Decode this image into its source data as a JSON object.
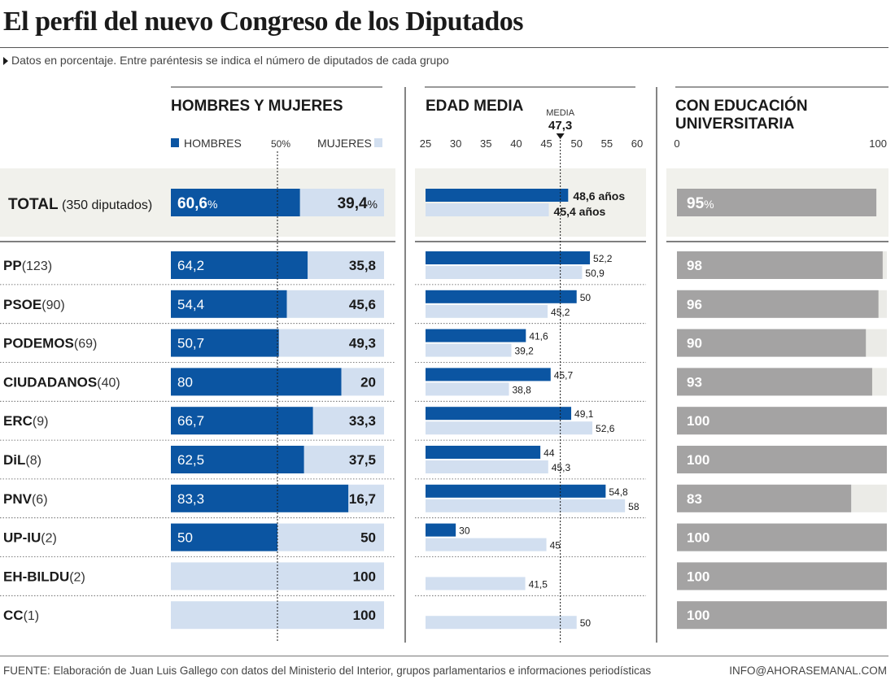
{
  "title": "El perfil del nuevo Congreso de los Diputados",
  "subtitle": "Datos en porcentaje. Entre paréntesis se indica el número de diputados de cada grupo",
  "footer": {
    "source": "FUENTE: Elaboración de Juan Luis Gallego con datos del Ministerio del Interior, grupos parlamentarios e informaciones periodísticas",
    "contact": "INFO@AHORASEMANAL.COM"
  },
  "colors": {
    "men": "#0b55a2",
    "women": "#d2dff0",
    "edu": "#a4a3a3",
    "edu_bg": "#ebebe7",
    "total_bg": "#f1f1ec"
  },
  "chart_data": [
    {
      "type": "bar",
      "title": "HOMBRES Y MUJERES",
      "legend": [
        "HOMBRES",
        "MUJERES"
      ],
      "reference_label": "50%",
      "total": {
        "label": "TOTAL",
        "count_label": "(350 diputados)",
        "men": "60,6",
        "women": "39,4",
        "unit": "%"
      },
      "categories": [
        "PP",
        "PSOE",
        "PODEMOS",
        "CIUDADANOS",
        "ERC",
        "DiL",
        "PNV",
        "UP-IU",
        "EH-BILDU",
        "CC"
      ],
      "counts": [
        "(123)",
        "(90)",
        "(69)",
        "(40)",
        "(9)",
        "(8)",
        "(6)",
        "(2)",
        "(2)",
        "(1)"
      ],
      "series": [
        {
          "name": "HOMBRES",
          "values": [
            64.2,
            54.4,
            50.7,
            80,
            66.7,
            62.5,
            83.3,
            50,
            0,
            0
          ],
          "labels": [
            "64,2",
            "54,4",
            "50,7",
            "80",
            "66,7",
            "62,5",
            "83,3",
            "50",
            "",
            ""
          ]
        },
        {
          "name": "MUJERES",
          "values": [
            35.8,
            45.6,
            49.3,
            20,
            33.3,
            37.5,
            16.7,
            50,
            100,
            100
          ],
          "labels": [
            "35,8",
            "45,6",
            "49,3",
            "20",
            "33,3",
            "37,5",
            "16,7",
            "50",
            "100",
            "100"
          ]
        }
      ]
    },
    {
      "type": "bar",
      "title": "EDAD MEDIA",
      "xlim": [
        25,
        60
      ],
      "ticks": [
        "25",
        "30",
        "35",
        "40",
        "45",
        "50",
        "55",
        "60"
      ],
      "reference": {
        "label": "MEDIA",
        "value_label": "47,3",
        "value": 47.3
      },
      "total": {
        "men": 48.6,
        "women": 45.4,
        "men_label": "48,6 años",
        "women_label": "45,4 años"
      },
      "categories": [
        "PP",
        "PSOE",
        "PODEMOS",
        "CIUDADANOS",
        "ERC",
        "DiL",
        "PNV",
        "UP-IU",
        "EH-BILDU",
        "CC"
      ],
      "series": [
        {
          "name": "HOMBRES",
          "values": [
            52.2,
            50,
            41.6,
            45.7,
            49.1,
            44,
            54.8,
            30,
            null,
            null
          ],
          "labels": [
            "52,2",
            "50",
            "41,6",
            "45,7",
            "49,1",
            "44",
            "54,8",
            "30",
            "",
            ""
          ]
        },
        {
          "name": "MUJERES",
          "values": [
            50.9,
            45.2,
            39.2,
            38.8,
            52.6,
            45.3,
            58,
            45,
            41.5,
            50
          ],
          "labels": [
            "50,9",
            "45,2",
            "39,2",
            "38,8",
            "52,6",
            "45,3",
            "58",
            "45",
            "41,5",
            "50"
          ]
        }
      ]
    },
    {
      "type": "bar",
      "title": "CON EDUCACIÓN UNIVERSITARIA",
      "xlim": [
        0,
        100
      ],
      "ticks": [
        "0",
        "100"
      ],
      "total": {
        "value": 95,
        "label": "95",
        "unit": "%"
      },
      "categories": [
        "PP",
        "PSOE",
        "PODEMOS",
        "CIUDADANOS",
        "ERC",
        "DiL",
        "PNV",
        "UP-IU",
        "EH-BILDU",
        "CC"
      ],
      "values": [
        98,
        96,
        90,
        93,
        100,
        100,
        83,
        100,
        100,
        100
      ],
      "labels": [
        "98",
        "96",
        "90",
        "93",
        "100",
        "100",
        "83",
        "100",
        "100",
        "100"
      ]
    }
  ]
}
